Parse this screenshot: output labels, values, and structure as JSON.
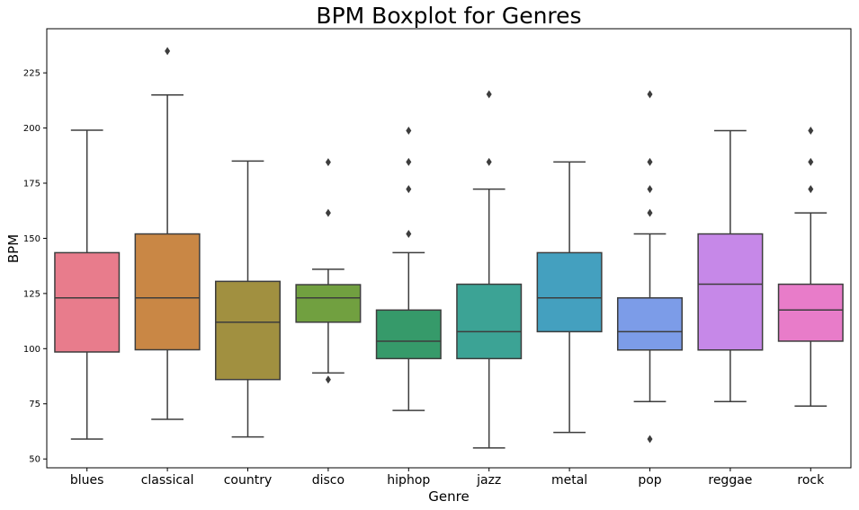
{
  "chart_data": {
    "type": "boxplot",
    "title": "BPM Boxplot for Genres",
    "xlabel": "Genre",
    "ylabel": "BPM",
    "ylim": [
      46,
      245
    ],
    "yticks": [
      50,
      75,
      100,
      125,
      150,
      175,
      200,
      225
    ],
    "grid": false,
    "legend": "none",
    "categories": [
      "blues",
      "classical",
      "country",
      "disco",
      "hiphop",
      "jazz",
      "metal",
      "pop",
      "reggae",
      "rock"
    ],
    "colors": [
      "#e87c8c",
      "#c98745",
      "#a19040",
      "#71a040",
      "#369a6a",
      "#3ca395",
      "#44a0bf",
      "#7c9ce8",
      "#c688e8",
      "#e87cc9"
    ],
    "boxes": [
      {
        "whislo": 59,
        "q1": 98.5,
        "med": 123,
        "q3": 143.5,
        "whishi": 199,
        "fliers": []
      },
      {
        "whislo": 68,
        "q1": 99.5,
        "med": 123,
        "q3": 152,
        "whishi": 215,
        "fliers": [
          234.9
        ]
      },
      {
        "whislo": 60,
        "q1": 86,
        "med": 112,
        "q3": 130.5,
        "whishi": 185,
        "fliers": []
      },
      {
        "whislo": 89,
        "q1": 112,
        "med": 123,
        "q3": 129,
        "whishi": 136,
        "fliers": [
          86,
          161.5,
          184.5
        ]
      },
      {
        "whislo": 72,
        "q1": 95.5,
        "med": 103.4,
        "q3": 117.5,
        "whishi": 143.5,
        "fliers": [
          152,
          172.3,
          184.6,
          198.8
        ]
      },
      {
        "whislo": 55,
        "q1": 95.5,
        "med": 107.7,
        "q3": 129.2,
        "whishi": 172.3,
        "fliers": [
          184.6,
          215.3
        ]
      },
      {
        "whislo": 62,
        "q1": 107.7,
        "med": 123,
        "q3": 143.5,
        "whishi": 184.6,
        "fliers": []
      },
      {
        "whislo": 76,
        "q1": 99.4,
        "med": 107.7,
        "q3": 123,
        "whishi": 152,
        "fliers": [
          59,
          161.5,
          172.3,
          184.6,
          215.3
        ]
      },
      {
        "whislo": 76,
        "q1": 99.4,
        "med": 129.2,
        "q3": 152,
        "whishi": 198.8,
        "fliers": []
      },
      {
        "whislo": 74,
        "q1": 103.4,
        "med": 117.5,
        "q3": 129.2,
        "whishi": 161.5,
        "fliers": [
          172.3,
          184.6,
          198.8
        ]
      }
    ]
  }
}
